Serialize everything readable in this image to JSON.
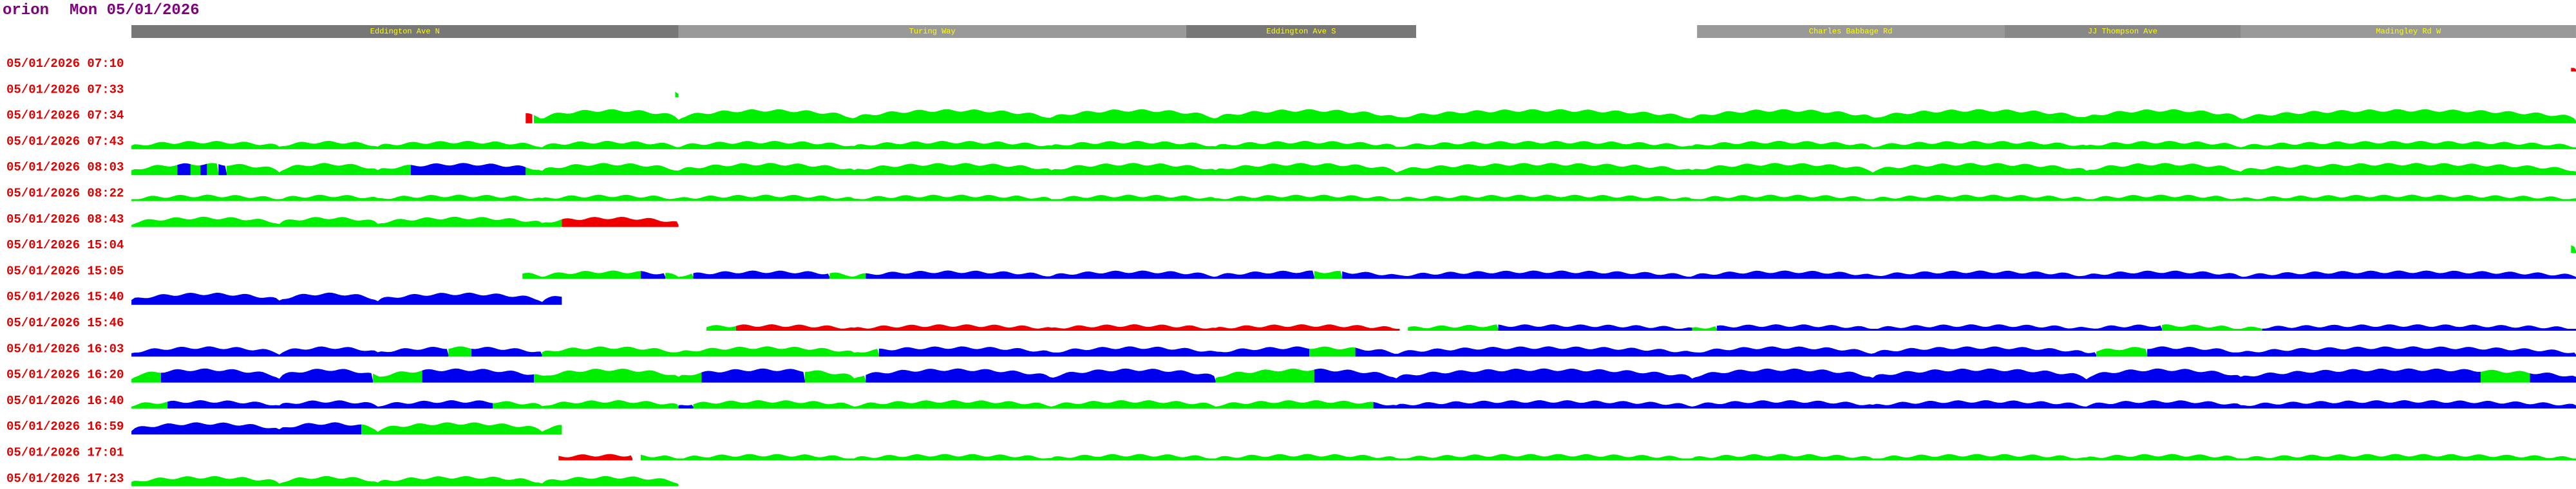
{
  "header": {
    "app": "orion",
    "date": "Mon 05/01/2026"
  },
  "streets": [
    "Eddington Ave N",
    "Turing Way",
    "Eddington Ave S",
    "Charles Babbage Rd",
    "JJ Thompson Ave",
    "Madingley Rd W"
  ],
  "rows": [
    "05/01/2026 07:10",
    "05/01/2026 07:33",
    "05/01/2026 07:34",
    "05/01/2026 07:43",
    "05/01/2026 08:03",
    "05/01/2026 08:22",
    "05/01/2026 08:43",
    "05/01/2026 15:04",
    "05/01/2026 15:05",
    "05/01/2026 15:40",
    "05/01/2026 15:46",
    "05/01/2026 16:03",
    "05/01/2026 16:20",
    "05/01/2026 16:40",
    "05/01/2026 16:59",
    "05/01/2026 17:01",
    "05/01/2026 17:23"
  ]
}
